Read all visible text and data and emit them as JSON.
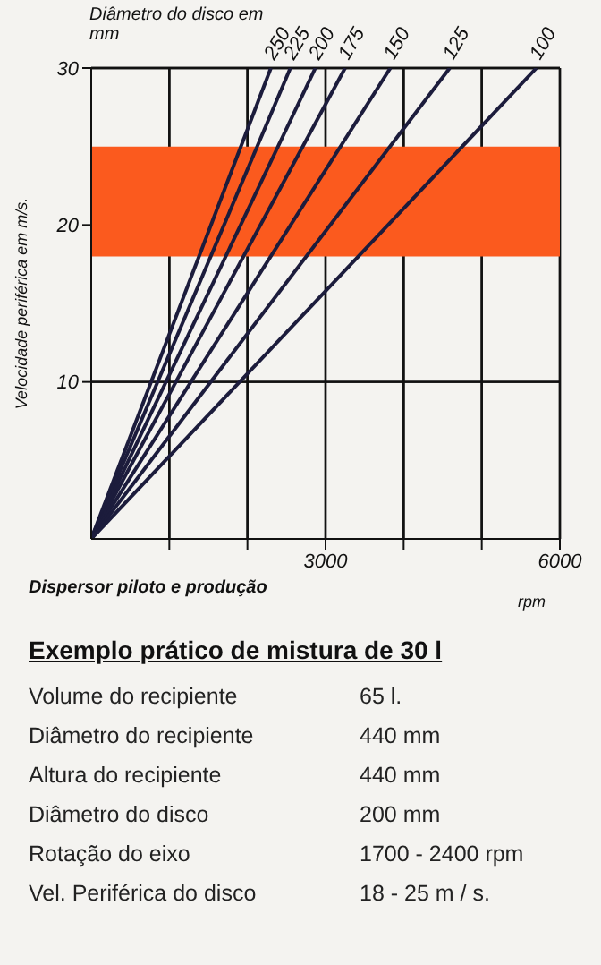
{
  "chart_data": {
    "type": "line",
    "legend_title": "Diâmetro do disco em mm",
    "ylabel": "Velocidade periférica em m/s.",
    "xlabel": "rpm",
    "xlim": [
      0,
      6000
    ],
    "ylim": [
      0,
      30
    ],
    "xticks": [
      {
        "value": 1000,
        "label": null
      },
      {
        "value": 2000,
        "label": null
      },
      3000,
      {
        "value": 4000,
        "label": null
      },
      {
        "value": 5000,
        "label": null
      },
      6000
    ],
    "yticks": [
      10,
      20,
      30
    ],
    "grid": true,
    "marker": "none",
    "line_style": "solid",
    "bands": [
      {
        "axis": "y",
        "from": 18,
        "to": 25,
        "color": "#fb5a1e"
      }
    ],
    "series": [
      {
        "name": "250",
        "color": "#1c1c3c",
        "x": [
          0,
          2300
        ],
        "values": [
          0,
          30
        ]
      },
      {
        "name": "225",
        "color": "#1c1c3c",
        "x": [
          0,
          2550
        ],
        "values": [
          0,
          30
        ]
      },
      {
        "name": "200",
        "color": "#1c1c3c",
        "x": [
          0,
          2870
        ],
        "values": [
          0,
          30
        ]
      },
      {
        "name": "175",
        "color": "#1c1c3c",
        "x": [
          0,
          3250
        ],
        "values": [
          0,
          30
        ]
      },
      {
        "name": "150",
        "color": "#1c1c3c",
        "x": [
          0,
          3830
        ],
        "values": [
          0,
          30
        ]
      },
      {
        "name": "125",
        "color": "#1c1c3c",
        "x": [
          0,
          4590
        ],
        "values": [
          0,
          30
        ]
      },
      {
        "name": "100",
        "color": "#1c1c3c",
        "x": [
          0,
          5700
        ],
        "values": [
          0,
          30
        ]
      }
    ],
    "annotations": [
      "Dispersor piloto e produção",
      "Exemplo prático de mistura de 30 l",
      "Volume do recipiente",
      "65 l.",
      "Diâmetro do recipiente",
      "440 mm",
      "Altura do recipiente",
      "440 mm",
      "Diâmetro do disco",
      "200 mm",
      "Rotação do eixo",
      "1700 - 2400 rpm",
      "Vel. Periférica do disco",
      "18 - 25 m / s."
    ]
  }
}
